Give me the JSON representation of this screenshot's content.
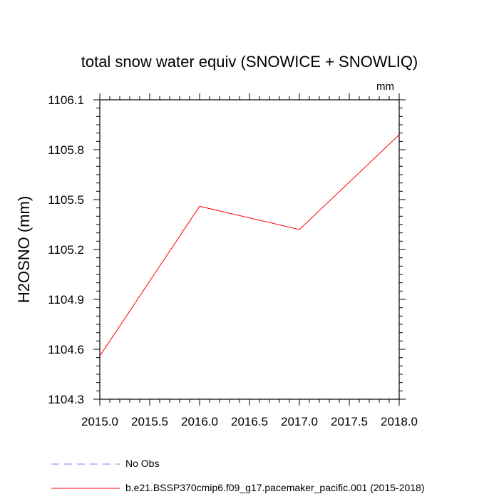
{
  "chart_data": {
    "type": "line",
    "title": "total snow water equiv (SNOWICE + SNOWLIQ)",
    "units_label": "mm",
    "xlabel": "",
    "ylabel": "H2OSNO  (mm)",
    "xlim": [
      2015.0,
      2018.0
    ],
    "ylim": [
      1104.3,
      1106.1
    ],
    "x_ticks": [
      "2015.0",
      "2015.5",
      "2016.0",
      "2016.5",
      "2017.0",
      "2017.5",
      "2018.0"
    ],
    "y_ticks": [
      "1104.3",
      "1104.6",
      "1104.9",
      "1105.2",
      "1105.5",
      "1105.8",
      "1106.1"
    ],
    "series": [
      {
        "name": "b.e21.BSSP370cmip6.f09_g17.pacemaker_pacific.001 (2015-2018)",
        "color": "#ff0000",
        "style": "solid",
        "x": [
          2015.0,
          2016.0,
          2017.0,
          2018.0
        ],
        "values": [
          1104.56,
          1105.46,
          1105.32,
          1105.89
        ]
      }
    ],
    "legend": [
      {
        "label": "No Obs",
        "color": "#8080ff",
        "style": "dashed"
      },
      {
        "label": "b.e21.BSSP370cmip6.f09_g17.pacemaker_pacific.001 (2015-2018)",
        "color": "#ff0000",
        "style": "solid"
      }
    ],
    "legend_position": "bottom"
  }
}
